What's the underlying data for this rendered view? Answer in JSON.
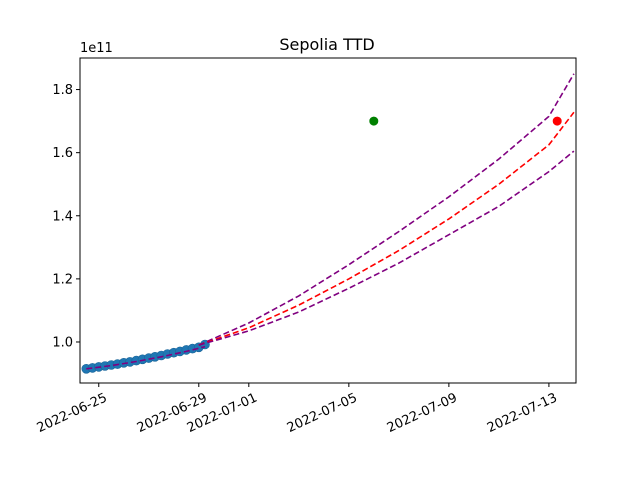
{
  "chart_data": {
    "type": "scatter",
    "title": "Sepolia TTD",
    "xlabel": "",
    "ylabel": "",
    "y_offset_label": "1e11",
    "x_tick_labels": [
      "2022-06-25",
      "2022-06-29",
      "2022-07-01",
      "2022-07-05",
      "2022-07-09",
      "2022-07-13"
    ],
    "y_ticks": [
      1.0,
      1.2,
      1.4,
      1.6,
      1.8
    ],
    "y_tick_labels": [
      "1.0",
      "1.2",
      "1.4",
      "1.6",
      "1.8"
    ],
    "xlim": [
      "2022-06-24T06:00",
      "2022-07-14T02:00"
    ],
    "ylim": [
      0.87,
      1.9
    ],
    "grid": false,
    "legend": "none",
    "x_tick_rotation_deg": 25,
    "series": [
      {
        "kind": "scatter",
        "color": "#1f77b4",
        "x": [
          "2022-06-24T12:00",
          "2022-06-24T18:00",
          "2022-06-25T00:00",
          "2022-06-25T06:00",
          "2022-06-25T12:00",
          "2022-06-25T18:00",
          "2022-06-26T00:00",
          "2022-06-26T06:00",
          "2022-06-26T12:00",
          "2022-06-26T18:00",
          "2022-06-27T00:00",
          "2022-06-27T06:00",
          "2022-06-27T12:00",
          "2022-06-27T18:00",
          "2022-06-28T00:00",
          "2022-06-28T06:00",
          "2022-06-28T12:00",
          "2022-06-28T18:00",
          "2022-06-29T00:00",
          "2022-06-29T06:00"
        ],
        "y": [
          0.915,
          0.918,
          0.921,
          0.924,
          0.927,
          0.93,
          0.934,
          0.937,
          0.941,
          0.945,
          0.949,
          0.953,
          0.957,
          0.962,
          0.966,
          0.97,
          0.975,
          0.979,
          0.983,
          0.992
        ]
      },
      {
        "kind": "dashed-line",
        "color": "#800080",
        "x": [
          "2022-06-24T12:00",
          "2022-06-25T12:00",
          "2022-06-26T12:00",
          "2022-06-27T12:00",
          "2022-06-28T12:00",
          "2022-06-29T06:00"
        ],
        "y": [
          0.915,
          0.925,
          0.938,
          0.953,
          0.97,
          0.985
        ]
      },
      {
        "kind": "dashed-line",
        "color": "#800080",
        "x": [
          "2022-06-29T00:00",
          "2022-07-01T00:00",
          "2022-07-03T00:00",
          "2022-07-05T00:00",
          "2022-07-07T00:00",
          "2022-07-09T00:00",
          "2022-07-11T00:00",
          "2022-07-13T00:00",
          "2022-07-14T00:00"
        ],
        "y": [
          0.99,
          1.06,
          1.146,
          1.245,
          1.35,
          1.46,
          1.58,
          1.715,
          1.85
        ]
      },
      {
        "kind": "dashed-line",
        "color": "#ff0000",
        "x": [
          "2022-06-29T00:00",
          "2022-07-01T00:00",
          "2022-07-03T00:00",
          "2022-07-05T00:00",
          "2022-07-07T00:00",
          "2022-07-09T00:00",
          "2022-07-11T00:00",
          "2022-07-13T00:00",
          "2022-07-14T00:00"
        ],
        "y": [
          0.99,
          1.045,
          1.117,
          1.2,
          1.29,
          1.39,
          1.5,
          1.625,
          1.728
        ]
      },
      {
        "kind": "dashed-line",
        "color": "#800080",
        "x": [
          "2022-06-29T00:00",
          "2022-07-01T00:00",
          "2022-07-03T00:00",
          "2022-07-05T00:00",
          "2022-07-07T00:00",
          "2022-07-09T00:00",
          "2022-07-11T00:00",
          "2022-07-13T00:00",
          "2022-07-14T00:00"
        ],
        "y": [
          0.99,
          1.035,
          1.095,
          1.17,
          1.25,
          1.34,
          1.43,
          1.54,
          1.605
        ]
      },
      {
        "kind": "point",
        "color": "#008000",
        "x": [
          "2022-07-06T00:00"
        ],
        "y": [
          1.7
        ]
      },
      {
        "kind": "point",
        "color": "#ff0000",
        "x": [
          "2022-07-13T08:00"
        ],
        "y": [
          1.7
        ]
      }
    ]
  }
}
